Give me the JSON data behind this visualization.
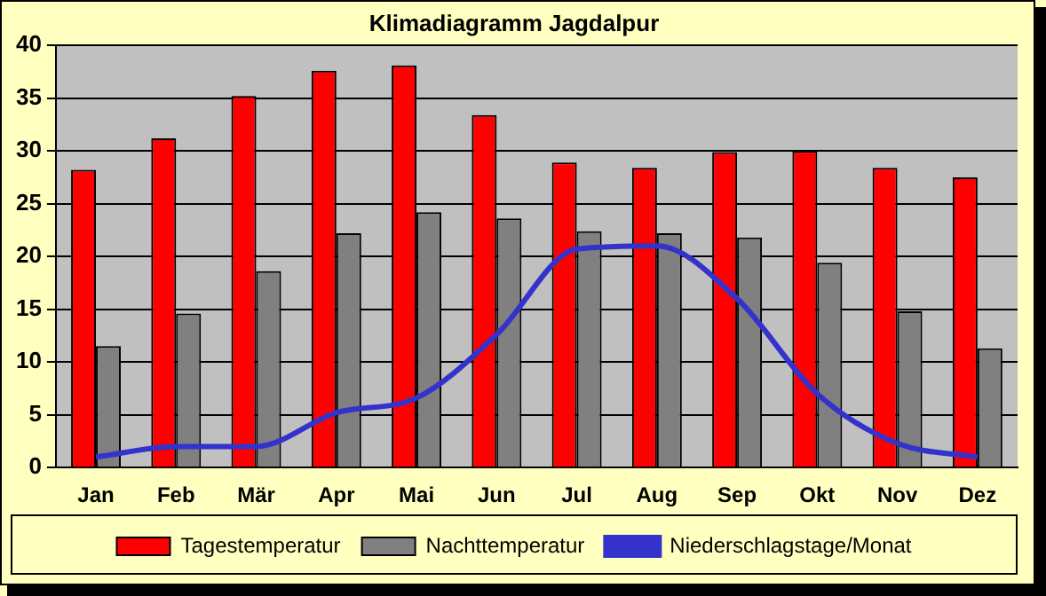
{
  "chart_data": {
    "type": "bar",
    "title": "Klimadiagramm Jagdalpur",
    "categories": [
      "Jan",
      "Feb",
      "Mär",
      "Apr",
      "Mai",
      "Jun",
      "Jul",
      "Aug",
      "Sep",
      "Okt",
      "Nov",
      "Dez"
    ],
    "series": [
      {
        "name": "Tagestemperatur",
        "color": "#ff0000",
        "values": [
          28.2,
          31.2,
          35.2,
          37.6,
          38.1,
          33.4,
          28.9,
          28.4,
          29.9,
          30.0,
          28.4,
          27.5
        ]
      },
      {
        "name": "Nachttemperatur",
        "color": "#808080",
        "values": [
          11.5,
          14.6,
          18.6,
          22.2,
          24.2,
          23.6,
          22.4,
          22.2,
          21.8,
          19.4,
          14.8,
          11.3
        ]
      },
      {
        "name": "Niederschlagstage/Monat",
        "type": "line",
        "color": "#3333cc",
        "values": [
          1,
          2,
          2,
          5.2,
          6.6,
          12.6,
          20.7,
          21,
          16,
          7,
          2.3,
          1
        ]
      }
    ],
    "ylim": [
      0,
      40
    ],
    "yticks": [
      0,
      5,
      10,
      15,
      20,
      25,
      30,
      35,
      40
    ],
    "grid": "y",
    "legend": "bottom",
    "marker": "none"
  }
}
